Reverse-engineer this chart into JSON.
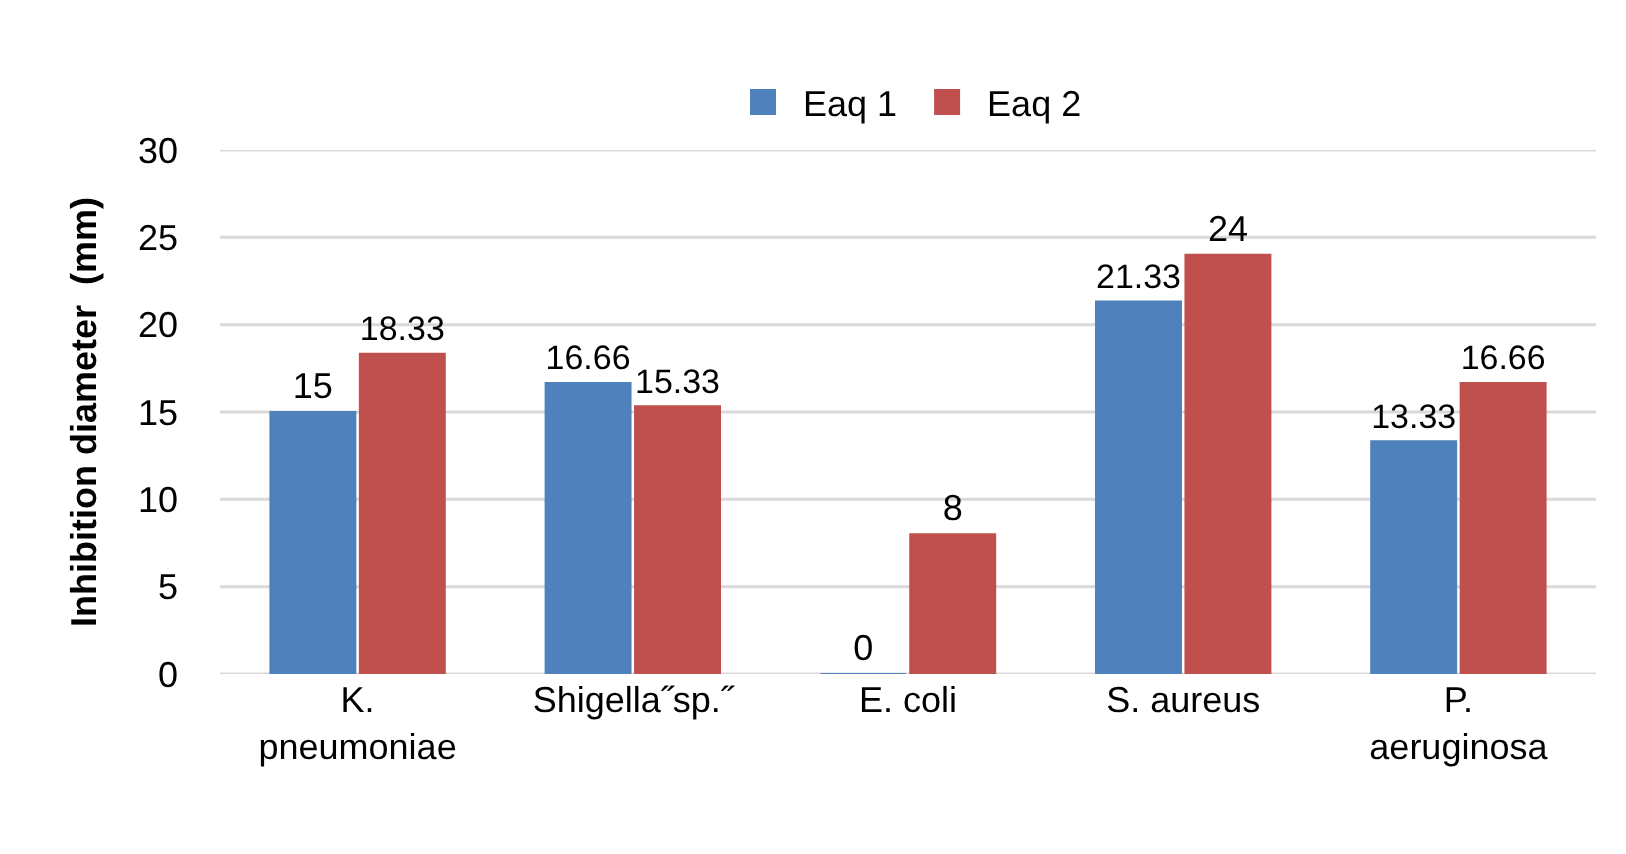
{
  "chart_data": {
    "type": "bar",
    "categories": [
      "K.\npneumoniae",
      "Shigella˝sp.˝",
      "E. coli",
      "S. aureus",
      "P.\naeruginosa"
    ],
    "series": [
      {
        "name": "Eaq 1",
        "color": "#4f81bd",
        "values": [
          15,
          16.66,
          0,
          21.33,
          13.33
        ]
      },
      {
        "name": "Eaq 2",
        "color": "#c0504d",
        "values": [
          18.33,
          15.33,
          8,
          24,
          16.66
        ]
      }
    ],
    "ylabel": "Inhibition diameter  (mm)",
    "ylim": [
      0,
      30
    ],
    "yticks": [
      0,
      5,
      10,
      15,
      20,
      25,
      30
    ],
    "grid": "y",
    "legend": "top",
    "data_labels": true
  }
}
